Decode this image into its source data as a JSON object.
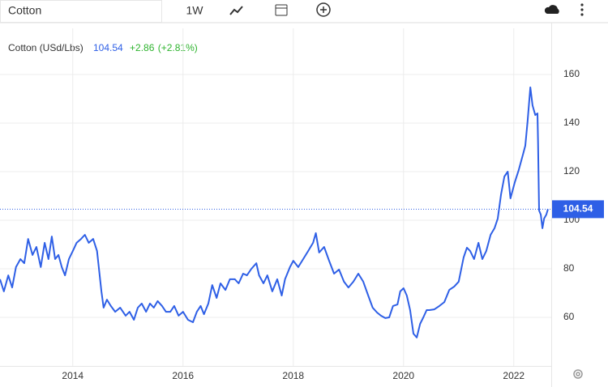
{
  "toolbar": {
    "symbol": "Cotton",
    "interval": "1W"
  },
  "chart_data": {
    "type": "line",
    "title": "Cotton (USd/Lbs)",
    "price": 104.54,
    "change": "+2.86",
    "change_pct": "(+2.81%)",
    "color": "#2e5fe6",
    "grid": true,
    "xlim": [
      2012.68,
      2022.68
    ],
    "xticks": [
      2014,
      2016,
      2018,
      2020,
      2022
    ],
    "ylim": [
      40,
      179
    ],
    "yticks": [
      60,
      80,
      100,
      120,
      140,
      160
    ],
    "x": [
      2012.68,
      2012.75,
      2012.83,
      2012.9,
      2012.97,
      2013.05,
      2013.12,
      2013.19,
      2013.27,
      2013.34,
      2013.42,
      2013.49,
      2013.56,
      2013.62,
      2013.68,
      2013.74,
      2013.8,
      2013.86,
      2013.93,
      2014.0,
      2014.07,
      2014.15,
      2014.22,
      2014.29,
      2014.37,
      2014.44,
      2014.52,
      2014.56,
      2014.62,
      2014.69,
      2014.77,
      2014.86,
      2014.96,
      2015.03,
      2015.11,
      2015.18,
      2015.25,
      2015.33,
      2015.4,
      2015.47,
      2015.54,
      2015.62,
      2015.69,
      2015.77,
      2015.84,
      2015.92,
      2016.0,
      2016.09,
      2016.18,
      2016.25,
      2016.32,
      2016.38,
      2016.46,
      2016.53,
      2016.61,
      2016.68,
      2016.77,
      2016.85,
      2016.94,
      2017.01,
      2017.09,
      2017.16,
      2017.24,
      2017.33,
      2017.38,
      2017.46,
      2017.53,
      2017.62,
      2017.71,
      2017.79,
      2017.85,
      2017.94,
      2018.0,
      2018.09,
      2018.18,
      2018.27,
      2018.36,
      2018.41,
      2018.47,
      2018.56,
      2018.65,
      2018.74,
      2018.83,
      2018.92,
      2019.0,
      2019.09,
      2019.18,
      2019.27,
      2019.36,
      2019.44,
      2019.52,
      2019.59,
      2019.67,
      2019.74,
      2019.81,
      2019.89,
      2019.94,
      2020.0,
      2020.06,
      2020.12,
      2020.18,
      2020.24,
      2020.3,
      2020.36,
      2020.42,
      2020.47,
      2020.56,
      2020.65,
      2020.74,
      2020.83,
      2020.92,
      2021.0,
      2021.09,
      2021.15,
      2021.21,
      2021.28,
      2021.36,
      2021.43,
      2021.5,
      2021.58,
      2021.65,
      2021.71,
      2021.77,
      2021.83,
      2021.89,
      2021.94,
      2022.02,
      2022.09,
      2022.17,
      2022.21,
      2022.25,
      2022.3,
      2022.34,
      2022.39,
      2022.43,
      2022.44,
      2022.46,
      2022.49,
      2022.52,
      2022.55,
      2022.59,
      2022.62
    ],
    "values": [
      75.7,
      70.7,
      77.3,
      72.3,
      80.7,
      84.0,
      82.3,
      92.3,
      85.7,
      89.0,
      80.7,
      90.7,
      84.0,
      93.3,
      84.0,
      85.7,
      80.7,
      77.3,
      84.0,
      87.3,
      90.7,
      92.3,
      94.0,
      90.7,
      92.3,
      87.3,
      70.7,
      64.0,
      67.3,
      64.7,
      62.3,
      64.0,
      60.7,
      62.3,
      59.0,
      64.0,
      65.7,
      62.3,
      65.7,
      64.0,
      66.7,
      64.7,
      62.3,
      62.3,
      64.7,
      60.7,
      62.3,
      59.0,
      58.0,
      62.3,
      64.7,
      61.3,
      65.7,
      73.3,
      68.0,
      74.0,
      71.3,
      75.7,
      75.7,
      74.0,
      78.0,
      77.3,
      80.0,
      82.3,
      77.3,
      74.0,
      77.3,
      70.7,
      75.7,
      69.0,
      75.7,
      80.7,
      83.3,
      80.7,
      84.0,
      87.3,
      90.7,
      94.7,
      86.7,
      89.0,
      83.3,
      78.0,
      79.7,
      74.7,
      72.3,
      74.7,
      78.0,
      74.7,
      69.0,
      64.0,
      62.0,
      60.7,
      59.7,
      60.0,
      64.7,
      65.3,
      70.7,
      72.0,
      69.0,
      63.0,
      53.3,
      51.7,
      57.3,
      60.0,
      63.0,
      63.0,
      63.3,
      64.7,
      66.3,
      71.3,
      72.7,
      74.7,
      84.7,
      88.7,
      87.3,
      84.0,
      90.7,
      84.0,
      87.3,
      94.0,
      96.7,
      100.7,
      110.7,
      118.0,
      120.0,
      109.0,
      115.7,
      120.7,
      127.3,
      130.7,
      140.7,
      154.7,
      147.3,
      143.3,
      144.0,
      132.3,
      104.0,
      102.3,
      96.7,
      100.7,
      102.3,
      104.54
    ]
  }
}
